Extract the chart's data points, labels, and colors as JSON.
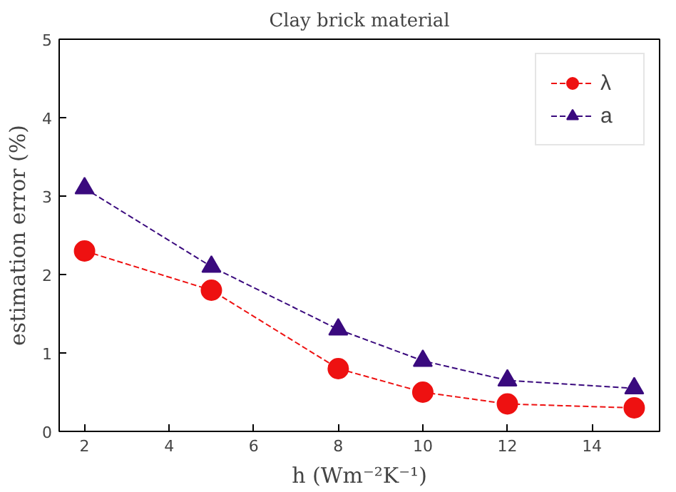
{
  "chart_data": {
    "type": "line",
    "title": "Clay brick material",
    "xlabel": "h (Wm⁻²K⁻¹)",
    "ylabel": "estimation error (%)",
    "x": [
      2,
      5,
      8,
      10,
      12,
      15
    ],
    "series": [
      {
        "name": "λ",
        "color": "#ee1111",
        "marker": "circle",
        "values": [
          2.3,
          1.8,
          0.8,
          0.5,
          0.35,
          0.3
        ]
      },
      {
        "name": "a",
        "color": "#3a0a7e",
        "marker": "triangle",
        "values": [
          3.1,
          2.1,
          1.3,
          0.9,
          0.65,
          0.55
        ]
      }
    ],
    "xlim": [
      1.4,
      15.6
    ],
    "ylim": [
      0,
      5
    ],
    "xticks": [
      2,
      4,
      6,
      8,
      10,
      12,
      14
    ],
    "yticks": [
      0,
      1,
      2,
      3,
      4,
      5
    ],
    "line_style": "dashed",
    "legend": "top right",
    "grid": false
  }
}
